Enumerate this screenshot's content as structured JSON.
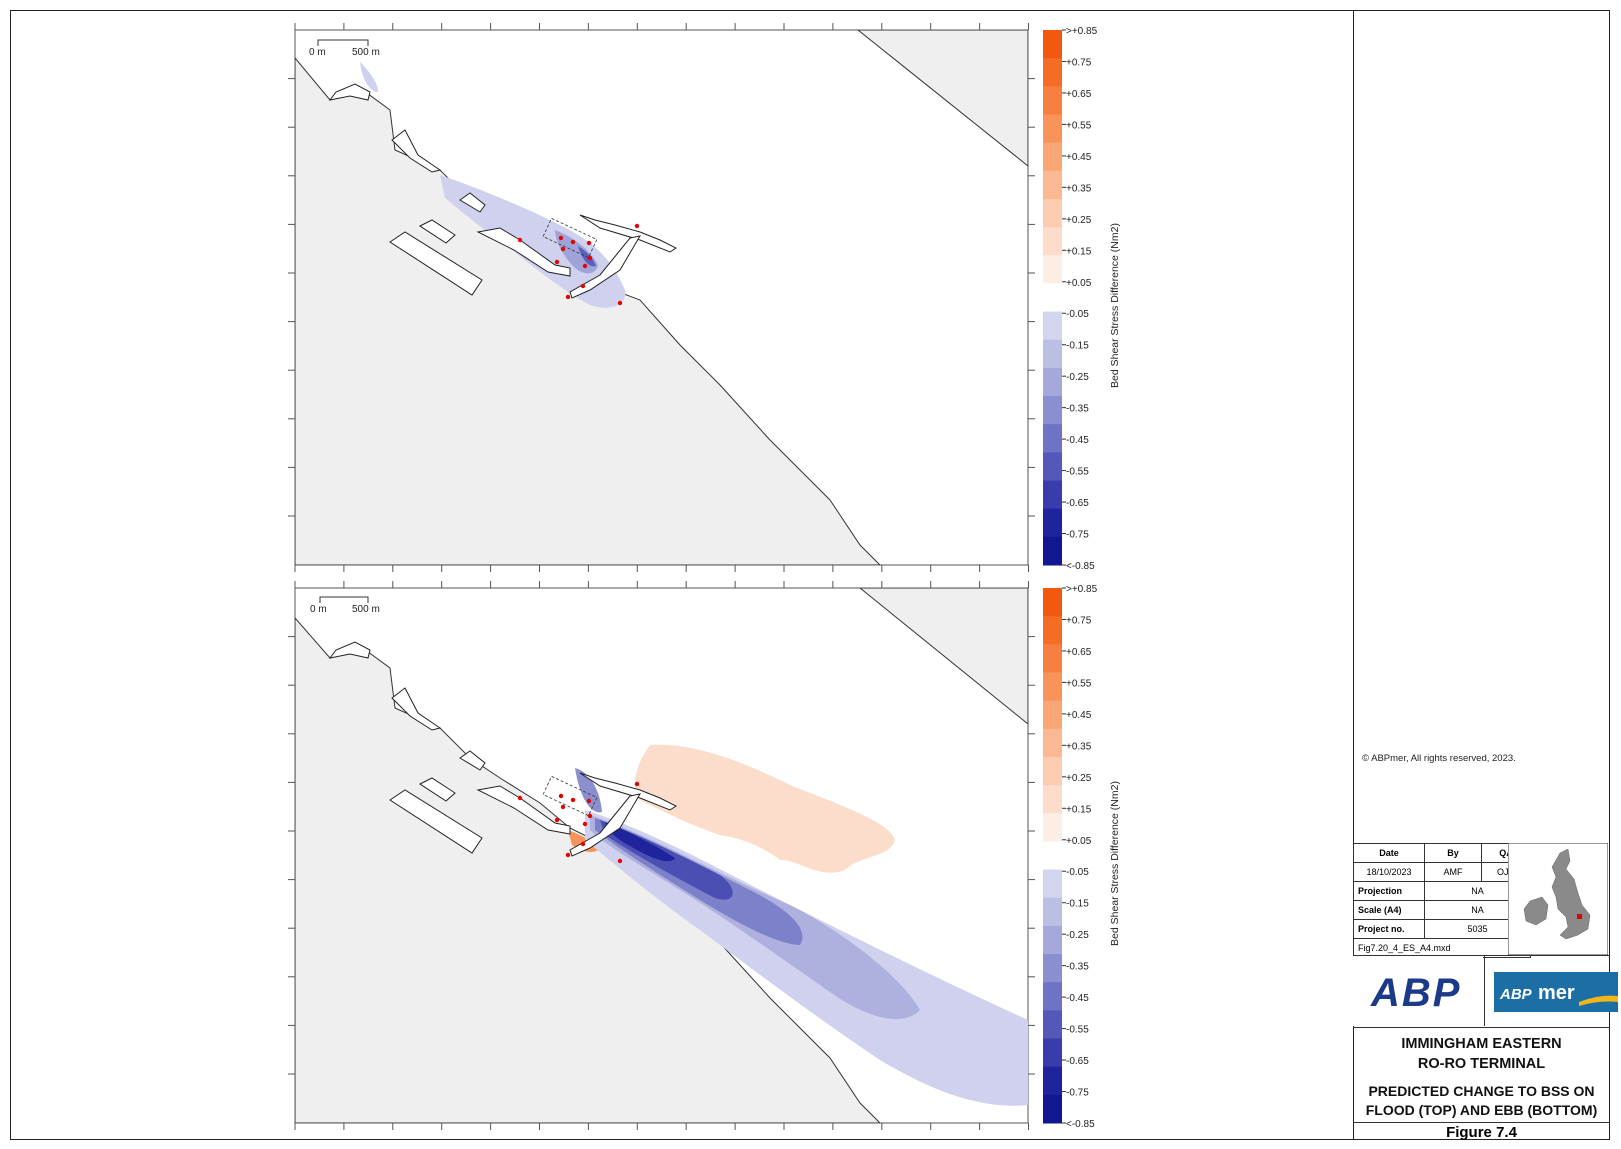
{
  "panels": [
    {
      "name": "flood",
      "scalebar": {
        "start": "0 m",
        "end": "500 m"
      },
      "legend_title": "Bed Shear Stress Difference (Nm2)"
    },
    {
      "name": "ebb",
      "scalebar": {
        "start": "0 m",
        "end": "500 m"
      },
      "legend_title": "Bed Shear Stress Difference (Nm2)"
    }
  ],
  "legend": {
    "labels": [
      ">+0.85",
      "+0.75",
      "+0.65",
      "+0.55",
      "+0.45",
      "+0.35",
      "+0.25",
      "+0.15",
      "+0.05",
      "-0.05",
      "-0.15",
      "-0.25",
      "-0.35",
      "-0.45",
      "-0.55",
      "-0.65",
      "-0.75",
      "<-0.85"
    ],
    "colors": [
      "#f2590f",
      "#f46c26",
      "#f67f40",
      "#f8935a",
      "#f9a675",
      "#fbb993",
      "#fccbb0",
      "#fddccb",
      "#fdeee5",
      "#ffffff",
      "#d3d5ee",
      "#bcbfe4",
      "#a4a8da",
      "#8b8fd0",
      "#6f73c5",
      "#5458b9",
      "#393dab",
      "#1f239c",
      "#121690"
    ]
  },
  "copyright": "© ABPmer, All rights reserved, 2023.",
  "meta": {
    "headers": [
      "Date",
      "By",
      "QA"
    ],
    "date": "18/10/2023",
    "by": "AMF",
    "qa": "OJR",
    "projection_label": "Projection",
    "projection": "NA",
    "scale_label": "Scale (A4)",
    "scale": "NA",
    "project_label": "Project no.",
    "project": "5035",
    "filename": "Fig7.20_4_ES_A4.mxd"
  },
  "logos": {
    "abp": "ABP",
    "abpmer": "mer",
    "abpmer_prefix": "ABP"
  },
  "title": {
    "line1": "IMMINGHAM EASTERN",
    "line2": "RO-RO TERMINAL",
    "line3": "PREDICTED CHANGE TO BSS ON",
    "line4": "FLOOD (TOP) AND EBB (BOTTOM)"
  },
  "figure": "Figure 7.4"
}
